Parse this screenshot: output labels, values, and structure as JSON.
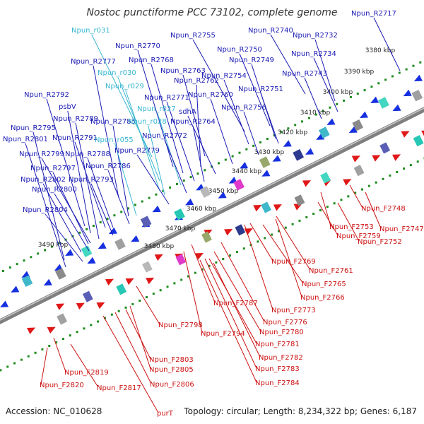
{
  "title": "Nostoc punctiforme PCC 73102, complete genome",
  "footer": {
    "accession": "Accession: NC_010628",
    "topology": "Topology: circular; Length: 8,234,322 bp; Genes: 6,187"
  },
  "colors": {
    "reverse_label": "#1a1ab4",
    "rna_label": "#39b7d0",
    "forward_label": "#cc1111",
    "reverse_arrow": "#1630e0",
    "forward_arrow": "#e01818",
    "backbone": "#7f7f7f",
    "tick": "#1e8c1e"
  },
  "kbp_ticks": [
    "3380 kbp",
    "3390 kbp",
    "3400 kbp",
    "3410 kbp",
    "3420 kbp",
    "3430 kbp",
    "3440 kbp",
    "3450 kbp",
    "3460 kbp",
    "3470 kbp",
    "3480 kbp",
    "3490 kbp"
  ],
  "top_labels": [
    {
      "text": "Npun_R2717",
      "kind": "reverse"
    },
    {
      "text": "Npun_r031",
      "kind": "rna"
    },
    {
      "text": "Npun_R2740",
      "kind": "reverse"
    },
    {
      "text": "Npun_R2732",
      "kind": "reverse"
    },
    {
      "text": "Npun_R2755",
      "kind": "reverse"
    },
    {
      "text": "Npun_R2770",
      "kind": "reverse"
    },
    {
      "text": "Npun_R2750",
      "kind": "reverse"
    },
    {
      "text": "Npun_R2734",
      "kind": "reverse"
    },
    {
      "text": "Npun_R2777",
      "kind": "reverse"
    },
    {
      "text": "Npun_R2768",
      "kind": "reverse"
    },
    {
      "text": "Npun_R2749",
      "kind": "reverse"
    },
    {
      "text": "Npun_r030",
      "kind": "rna"
    },
    {
      "text": "Npun_R2763",
      "kind": "reverse"
    },
    {
      "text": "Npun_R2754",
      "kind": "reverse"
    },
    {
      "text": "Npun_R2743",
      "kind": "reverse"
    },
    {
      "text": "Npun_R2762",
      "kind": "reverse"
    },
    {
      "text": "Npun_r029",
      "kind": "rna"
    },
    {
      "text": "Npun_R2751",
      "kind": "reverse"
    },
    {
      "text": "Npun_R2792",
      "kind": "reverse"
    },
    {
      "text": "Npun_R2771",
      "kind": "reverse"
    },
    {
      "text": "Npun_R2760",
      "kind": "reverse"
    },
    {
      "text": "psbV",
      "kind": "reverse"
    },
    {
      "text": "Npun_r027",
      "kind": "rna"
    },
    {
      "text": "sdhA",
      "kind": "reverse"
    },
    {
      "text": "Npun_R2756",
      "kind": "reverse"
    },
    {
      "text": "Npun_R2789",
      "kind": "reverse"
    },
    {
      "text": "Npun_R2785",
      "kind": "reverse"
    },
    {
      "text": "Npun_r028",
      "kind": "rna"
    },
    {
      "text": "Npun_R2764",
      "kind": "reverse"
    },
    {
      "text": "Npun_R2795",
      "kind": "reverse"
    },
    {
      "text": "Npun_R2791",
      "kind": "reverse"
    },
    {
      "text": "Npun_r055",
      "kind": "rna"
    },
    {
      "text": "Npun_R2772",
      "kind": "reverse"
    },
    {
      "text": "Npun_R2801",
      "kind": "reverse"
    },
    {
      "text": "Npun_R2779",
      "kind": "reverse"
    },
    {
      "text": "Npun_R2799",
      "kind": "reverse"
    },
    {
      "text": "Npun_R2788",
      "kind": "reverse"
    },
    {
      "text": "Npun_R2786",
      "kind": "reverse"
    },
    {
      "text": "Npun_R2797",
      "kind": "reverse"
    },
    {
      "text": "Npun_R2802",
      "kind": "reverse"
    },
    {
      "text": "Npun_R2793",
      "kind": "reverse"
    },
    {
      "text": "Npun_R2800",
      "kind": "reverse"
    },
    {
      "text": "Npun_R2804",
      "kind": "reverse"
    }
  ],
  "bottom_labels": [
    {
      "text": "Npun_F2748"
    },
    {
      "text": "Npun_F2747"
    },
    {
      "text": "Npun_F2753"
    },
    {
      "text": "Npun_F2759"
    },
    {
      "text": "Npun_F2752"
    },
    {
      "text": "Npun_F2769"
    },
    {
      "text": "Npun_F2761"
    },
    {
      "text": "Npun_F2765"
    },
    {
      "text": "Npun_F2766"
    },
    {
      "text": "Npun_F2787"
    },
    {
      "text": "Npun_F2773"
    },
    {
      "text": "Npun_F2776"
    },
    {
      "text": "Npun_F2798"
    },
    {
      "text": "Npun_F2794"
    },
    {
      "text": "Npun_F2780"
    },
    {
      "text": "Npun_F2781"
    },
    {
      "text": "Npun_F2782"
    },
    {
      "text": "Npun_F2803"
    },
    {
      "text": "Npun_F2783"
    },
    {
      "text": "Npun_F2805"
    },
    {
      "text": "Npun_F2819"
    },
    {
      "text": "Npun_F2784"
    },
    {
      "text": "Npun_F2806"
    },
    {
      "text": "Npun_F2820"
    },
    {
      "text": "Npun_F2817"
    },
    {
      "text": "purT"
    }
  ]
}
